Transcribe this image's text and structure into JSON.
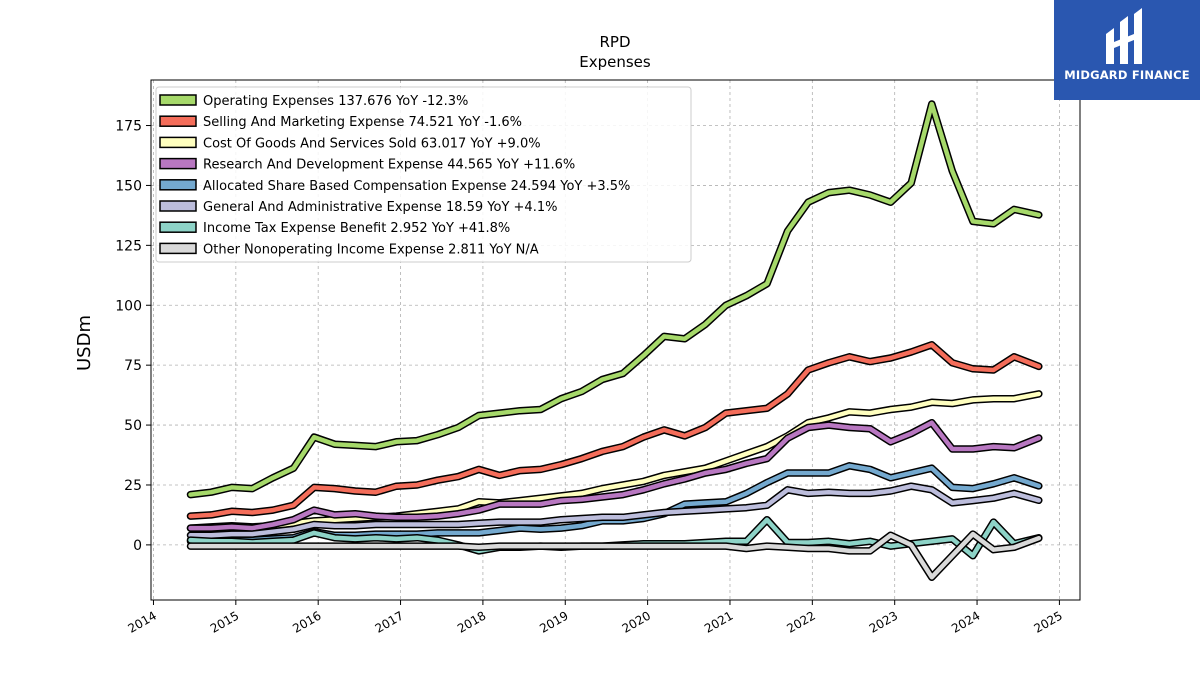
{
  "logo": {
    "text": "MIDGARD FINANCE",
    "icon": "midgard-logo-icon",
    "bg_color": "#2a57b0"
  },
  "chart_data": {
    "type": "line",
    "title": "RPD",
    "subtitle": "Expenses",
    "ylabel": "USDm",
    "xlabel": "",
    "xlim": [
      2013.97,
      2025.25
    ],
    "ylim": [
      -23,
      194
    ],
    "yticks": [
      0,
      25,
      50,
      75,
      100,
      125,
      150,
      175
    ],
    "xticks": [
      2014,
      2015,
      2016,
      2017,
      2018,
      2019,
      2020,
      2021,
      2022,
      2023,
      2024,
      2025
    ],
    "grid": true,
    "legend_position": "top-left",
    "x": [
      2014.45,
      2014.7,
      2014.95,
      2015.2,
      2015.45,
      2015.7,
      2015.95,
      2016.2,
      2016.45,
      2016.7,
      2016.95,
      2017.2,
      2017.45,
      2017.7,
      2017.95,
      2018.2,
      2018.45,
      2018.7,
      2018.95,
      2019.2,
      2019.45,
      2019.7,
      2019.95,
      2020.2,
      2020.45,
      2020.7,
      2020.95,
      2021.2,
      2021.45,
      2021.7,
      2021.95,
      2022.2,
      2022.45,
      2022.7,
      2022.95,
      2023.2,
      2023.45,
      2023.7,
      2023.95,
      2024.2,
      2024.45,
      2024.75
    ],
    "series": [
      {
        "name": "Operating Expenses  137.676 YoY -12.3%",
        "color": "#a6d96a",
        "values": [
          21,
          22,
          24,
          23.5,
          28,
          32,
          45,
          42,
          41.5,
          41,
          43,
          43.5,
          46,
          49,
          54,
          55,
          56,
          56.5,
          61,
          64,
          69,
          71.5,
          79,
          87,
          86,
          92,
          100,
          104,
          109,
          131,
          143,
          147,
          148,
          146,
          143,
          151,
          184,
          156,
          135,
          134,
          140,
          137.7
        ]
      },
      {
        "name": "Selling And Marketing Expense  74.521 YoY -1.6%",
        "color": "#f46d5a",
        "values": [
          12,
          12.5,
          14,
          13.5,
          14.5,
          16.5,
          24,
          23.5,
          22.5,
          22,
          24.5,
          25,
          27,
          28.5,
          31.5,
          29,
          31,
          31.5,
          33.5,
          36,
          39,
          41,
          45,
          48,
          45.5,
          49,
          55,
          56,
          57,
          63,
          73,
          76,
          78.5,
          76.5,
          78,
          80.5,
          83.5,
          76,
          73.5,
          73,
          78.5,
          74.5
        ]
      },
      {
        "name": "Cost Of Goods And Services Sold  63.017 YoY +9.0%",
        "color": "#ffffbf",
        "values": [
          7,
          7.5,
          8,
          7.5,
          8,
          9,
          10,
          10.5,
          11,
          11.5,
          12,
          13,
          14,
          15,
          18,
          17.5,
          18.5,
          19.5,
          20.5,
          21.5,
          23.5,
          25,
          26.5,
          29,
          30.5,
          32,
          35,
          38,
          41,
          45.5,
          51,
          53,
          55.5,
          55,
          56.5,
          57.5,
          59.5,
          59,
          60.5,
          61,
          61,
          63
        ]
      },
      {
        "name": "Research And Development Expense  44.565 YoY +11.6%",
        "color": "#b877c1",
        "values": [
          7,
          7,
          7.5,
          7,
          8.5,
          10.5,
          14.5,
          12.5,
          13,
          12,
          11.5,
          11.5,
          12,
          13,
          14.5,
          17,
          17,
          17,
          18.5,
          19,
          20,
          21,
          23,
          25.5,
          27.5,
          30,
          31.5,
          34,
          36,
          44.5,
          49,
          50,
          49,
          48.5,
          43,
          46.5,
          51,
          40,
          40,
          41,
          40.5,
          44.6
        ]
      },
      {
        "name": "Allocated Share Based Compensation Expense  24.594 YoY +3.5%",
        "color": "#74a9cf",
        "values": [
          1.5,
          1.5,
          2,
          2,
          2.5,
          3,
          5.5,
          4,
          4,
          4.5,
          4.5,
          4.5,
          5,
          5,
          5,
          6,
          7,
          6.5,
          7,
          8,
          10,
          10,
          11,
          13,
          17,
          17.5,
          18,
          21.5,
          26,
          30,
          30,
          30,
          33,
          31.5,
          28,
          30,
          32,
          24,
          23.5,
          25.5,
          28,
          24.6
        ]
      },
      {
        "name": "General And Administrative Expense  18.59 YoY +4.1%",
        "color": "#bcbddc",
        "values": [
          4,
          4,
          4.5,
          4.5,
          5.5,
          6.5,
          8.5,
          8,
          8,
          8.5,
          8.5,
          8.5,
          8.5,
          8.5,
          9,
          9.5,
          9.5,
          9.5,
          10.5,
          11,
          11.5,
          11.5,
          12.5,
          13.5,
          14,
          14.5,
          15,
          15.5,
          16.5,
          23,
          21.5,
          22,
          21.5,
          21.5,
          22.5,
          24.5,
          23,
          17.5,
          18.5,
          19.5,
          21.5,
          18.6
        ]
      },
      {
        "name": "Income Tax Expense Benefit  2.952 YoY +41.8%",
        "color": "#8dd3c7",
        "values": [
          2,
          1.5,
          1.5,
          1,
          1.5,
          2,
          5,
          3,
          2.5,
          3,
          2.5,
          3,
          2,
          0,
          -2.5,
          -1,
          -1,
          -0.5,
          -1,
          -0.5,
          -0.5,
          0,
          0.5,
          0.5,
          0.5,
          1,
          1.5,
          1.5,
          10.5,
          1,
          1,
          1.5,
          0.5,
          1.5,
          -0.5,
          0.5,
          1.5,
          2.5,
          -4.5,
          9.5,
          0.5,
          2.95
        ]
      },
      {
        "name": "Other Nonoperating Income Expense  2.811 YoY N/A",
        "color": "#d9d9d9",
        "values": [
          -0.5,
          -0.5,
          -0.5,
          -0.5,
          -0.5,
          -0.5,
          -0.5,
          -0.5,
          -0.5,
          -0.5,
          -0.5,
          -0.5,
          -0.5,
          -0.5,
          -1,
          -0.5,
          -0.5,
          -0.5,
          -0.5,
          -0.5,
          -0.5,
          -0.5,
          -0.5,
          -0.5,
          -0.5,
          -0.5,
          -0.5,
          -1.5,
          -0.5,
          -1,
          -1.5,
          -1.5,
          -2.5,
          -2.5,
          4,
          0,
          -13.5,
          -4.5,
          4.5,
          -2,
          -1,
          2.8
        ]
      }
    ]
  }
}
